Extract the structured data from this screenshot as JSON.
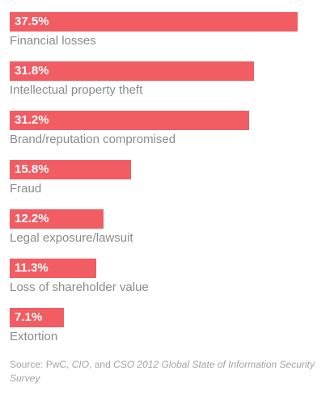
{
  "chart_data": {
    "type": "bar",
    "orientation": "horizontal",
    "categories": [
      "Financial losses",
      "Intellectual property theft",
      "Brand/reputation compromised",
      "Fraud",
      "Legal exposure/lawsuit",
      "Loss of shareholder value",
      "Extortion"
    ],
    "values": [
      37.5,
      31.8,
      31.2,
      15.8,
      12.2,
      11.3,
      7.1
    ],
    "value_labels": [
      "37.5%",
      "31.8%",
      "31.2%",
      "15.8%",
      "12.2%",
      "11.3%",
      "7.1%"
    ],
    "unit": "%",
    "bar_color": "#f25c63",
    "grid": false,
    "legend": "none"
  },
  "source": {
    "prefix": "Source: PwC, ",
    "cio": "CIO",
    "and": ", and ",
    "survey": "CSO 2012 Global State of Information Security Survey"
  }
}
